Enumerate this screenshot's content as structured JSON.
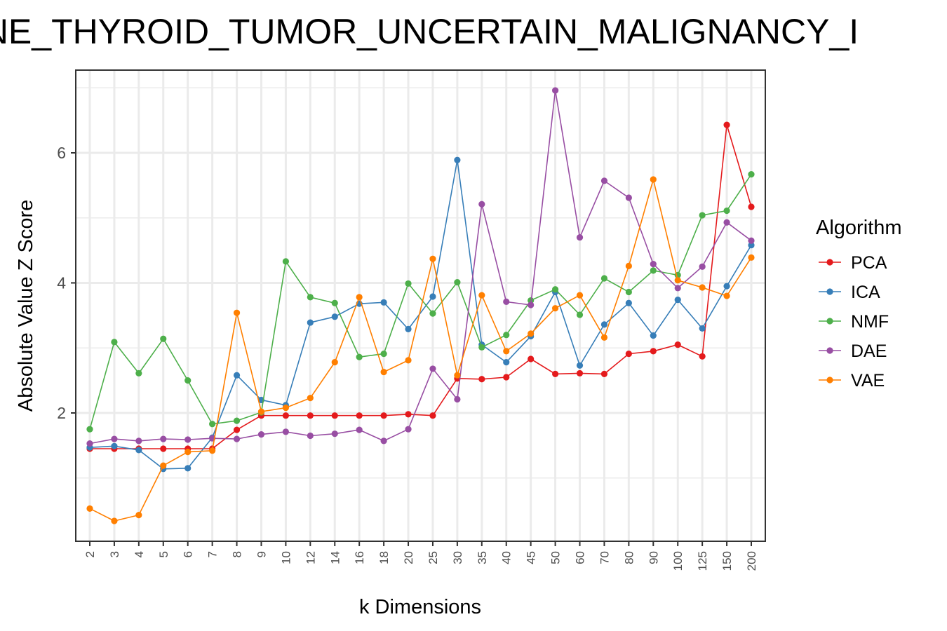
{
  "chart_data": {
    "type": "line",
    "title": "NE_THYROID_TUMOR_UNCERTAIN_MALIGNANCY_I",
    "xlabel": "k Dimensions",
    "ylabel": "Absolute Value Z Score",
    "legend_title": "Algorithm",
    "legend_position": "right",
    "grid": true,
    "x": [
      "2",
      "3",
      "4",
      "5",
      "6",
      "7",
      "8",
      "9",
      "10",
      "12",
      "14",
      "16",
      "18",
      "20",
      "25",
      "30",
      "35",
      "40",
      "45",
      "50",
      "60",
      "70",
      "80",
      "90",
      "100",
      "125",
      "150",
      "200"
    ],
    "yticks": [
      2,
      4,
      6
    ],
    "ylim": [
      0.05,
      7.3
    ],
    "series": [
      {
        "name": "PCA",
        "color": "#e41a1c",
        "values": [
          1.45,
          1.45,
          1.45,
          1.45,
          1.45,
          1.45,
          1.74,
          1.96,
          1.96,
          1.96,
          1.96,
          1.96,
          1.96,
          1.98,
          1.96,
          2.53,
          2.52,
          2.55,
          2.83,
          2.6,
          2.61,
          2.6,
          2.91,
          2.95,
          3.05,
          2.87,
          6.43,
          5.17
        ]
      },
      {
        "name": "ICA",
        "color": "#377eb8",
        "values": [
          1.47,
          1.49,
          1.43,
          1.14,
          1.15,
          1.62,
          2.58,
          2.2,
          2.12,
          3.39,
          3.48,
          3.68,
          3.7,
          3.29,
          3.79,
          5.89,
          3.05,
          2.78,
          3.18,
          3.86,
          2.73,
          3.36,
          3.69,
          3.19,
          3.74,
          3.3,
          3.95,
          4.58
        ]
      },
      {
        "name": "NMF",
        "color": "#4daf4a",
        "values": [
          1.75,
          3.09,
          2.61,
          3.14,
          2.5,
          1.83,
          1.88,
          2.01,
          4.33,
          3.78,
          3.69,
          2.86,
          2.91,
          3.99,
          3.53,
          4.01,
          3.01,
          3.2,
          3.73,
          3.9,
          3.51,
          4.07,
          3.86,
          4.19,
          4.12,
          5.04,
          5.11,
          5.67
        ]
      },
      {
        "name": "DAE",
        "color": "#984ea3",
        "values": [
          1.53,
          1.6,
          1.57,
          1.6,
          1.59,
          1.61,
          1.6,
          1.67,
          1.71,
          1.65,
          1.68,
          1.74,
          1.57,
          1.75,
          2.68,
          2.21,
          5.21,
          3.71,
          3.66,
          6.96,
          4.7,
          5.57,
          5.31,
          4.29,
          3.92,
          4.25,
          4.93,
          4.65
        ]
      },
      {
        "name": "VAE",
        "color": "#ff7f00",
        "values": [
          0.53,
          0.34,
          0.43,
          1.19,
          1.4,
          1.42,
          3.54,
          2.02,
          2.08,
          2.23,
          2.78,
          3.78,
          2.63,
          2.81,
          4.37,
          2.58,
          3.81,
          2.95,
          3.22,
          3.61,
          3.81,
          3.16,
          4.26,
          5.59,
          4.04,
          3.93,
          3.8,
          4.39
        ]
      }
    ]
  }
}
